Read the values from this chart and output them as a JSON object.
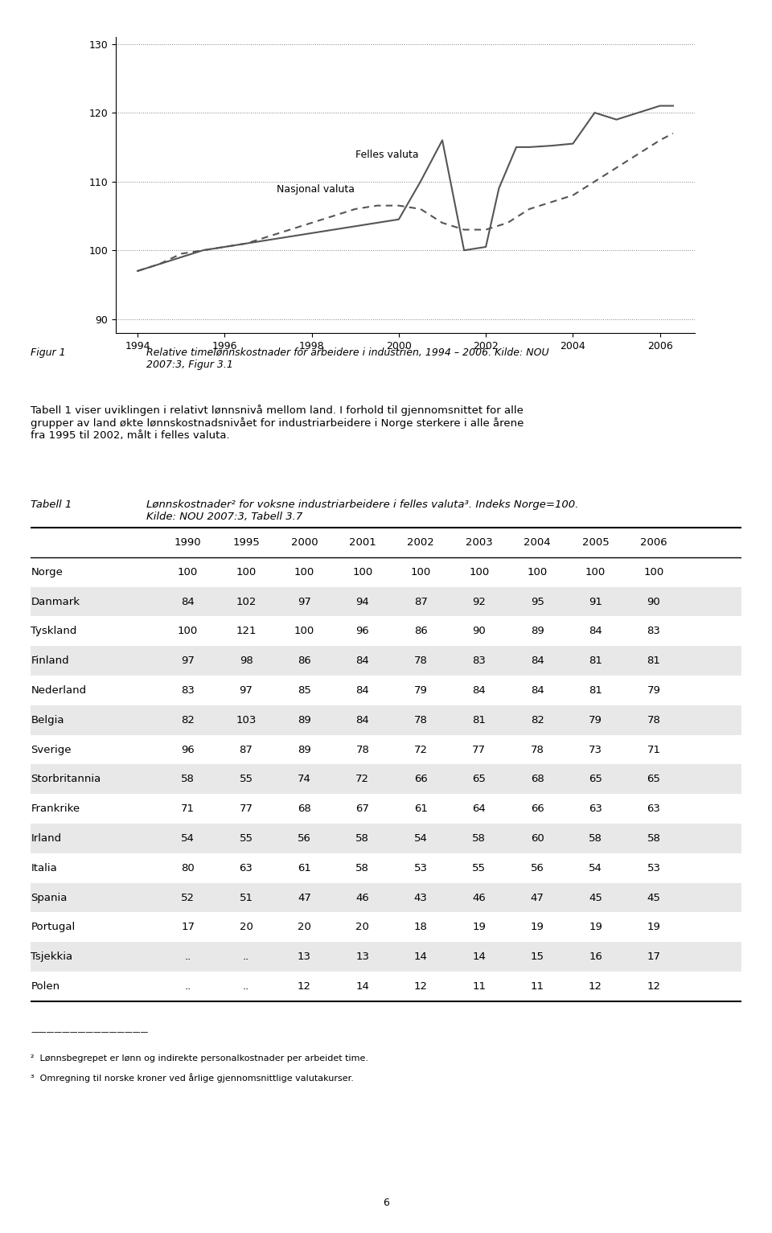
{
  "fig_caption": "Figur 1  Relative timelønnskostnader for arbeidere i industrien, 1994 – 2006. Kilde: NOU 2007:3, Figur 3.1",
  "body_text": "Tabell 1 viser uviklingen i relativt lønnsnivå mellom land. I forhold til gjennomsnittet for alle grupper av land økte lønnskostnadsnivået for industriarbeidere i Norge sterkere i alle årene fra 1995 til 2002, målt i felles valuta.",
  "table_caption_label": "Tabell 1",
  "table_caption_text": "Lønnskostnader² for voksne industriarbeidere i felles valuta³. Indeks Norge=100. Kilde: NOU 2007:3, Tabell 3.7",
  "columns": [
    "",
    "1990",
    "1995",
    "2000",
    "2001",
    "2002",
    "2003",
    "2004",
    "2005",
    "2006"
  ],
  "rows": [
    [
      "Norge",
      "100",
      "100",
      "100",
      "100",
      "100",
      "100",
      "100",
      "100",
      "100"
    ],
    [
      "Danmark",
      "84",
      "102",
      "97",
      "94",
      "87",
      "92",
      "95",
      "91",
      "90"
    ],
    [
      "Tyskland",
      "100",
      "121",
      "100",
      "96",
      "86",
      "90",
      "89",
      "84",
      "83"
    ],
    [
      "Finland",
      "97",
      "98",
      "86",
      "84",
      "78",
      "83",
      "84",
      "81",
      "81"
    ],
    [
      "Nederland",
      "83",
      "97",
      "85",
      "84",
      "79",
      "84",
      "84",
      "81",
      "79"
    ],
    [
      "Belgia",
      "82",
      "103",
      "89",
      "84",
      "78",
      "81",
      "82",
      "79",
      "78"
    ],
    [
      "Sverige",
      "96",
      "87",
      "89",
      "78",
      "72",
      "77",
      "78",
      "73",
      "71"
    ],
    [
      "Storbritannia",
      "58",
      "55",
      "74",
      "72",
      "66",
      "65",
      "68",
      "65",
      "65"
    ],
    [
      "Frankrike",
      "71",
      "77",
      "68",
      "67",
      "61",
      "64",
      "66",
      "63",
      "63"
    ],
    [
      "Irland",
      "54",
      "55",
      "56",
      "58",
      "54",
      "58",
      "60",
      "58",
      "58"
    ],
    [
      "Italia",
      "80",
      "63",
      "61",
      "58",
      "53",
      "55",
      "56",
      "54",
      "53"
    ],
    [
      "Spania",
      "52",
      "51",
      "47",
      "46",
      "43",
      "46",
      "47",
      "45",
      "45"
    ],
    [
      "Portugal",
      "17",
      "20",
      "20",
      "20",
      "18",
      "19",
      "19",
      "19",
      "19"
    ],
    [
      "Tsjekkia",
      "..",
      "..",
      "13",
      "13",
      "14",
      "14",
      "15",
      "16",
      "17"
    ],
    [
      "Polen",
      "..",
      "..",
      "12",
      "14",
      "12",
      "11",
      "11",
      "12",
      "12"
    ]
  ],
  "footnote2": "²  Lønnsbegrepet er lønn og indirekte personalkostnader per arbeidet time.",
  "footnote3": "³  Omregning til norske kroner ved årlige gjennomsnittlige valutakurser.",
  "page_number": "6",
  "chart": {
    "x_felles": [
      1994,
      1994.5,
      1995,
      1995.5,
      1996,
      1996.5,
      1997,
      1997.5,
      1998,
      1998.5,
      1999,
      1999.5,
      2000,
      2000.5,
      2001,
      2001.5,
      2002,
      2002.3,
      2002.7,
      2003,
      2003.5,
      2004,
      2004.5,
      2005,
      2005.5,
      2006,
      2006.3
    ],
    "y_felles": [
      97,
      98,
      99,
      100,
      100.5,
      101,
      101.5,
      102,
      102.5,
      103,
      103.5,
      104,
      104.5,
      110,
      116,
      100,
      100.5,
      109,
      115,
      115,
      115.2,
      115.5,
      120,
      119,
      120,
      121,
      121
    ],
    "x_nasjonal": [
      1994,
      1994.5,
      1995,
      1995.5,
      1996,
      1996.5,
      1997,
      1997.5,
      1998,
      1998.5,
      1999,
      1999.5,
      2000,
      2000.5,
      2001,
      2001.5,
      2002,
      2002.5,
      2003,
      2003.5,
      2004,
      2004.5,
      2005,
      2005.5,
      2006,
      2006.3
    ],
    "y_nasjonal": [
      97,
      98,
      99.5,
      100,
      100.5,
      101,
      102,
      103,
      104,
      105,
      106,
      106.5,
      106.5,
      106,
      104,
      103,
      103,
      104,
      106,
      107,
      108,
      110,
      112,
      114,
      116,
      117
    ],
    "xlim": [
      1993.5,
      2006.8
    ],
    "ylim": [
      88,
      131
    ],
    "yticks": [
      90,
      100,
      110,
      120,
      130
    ],
    "xticks": [
      1994,
      1996,
      1998,
      2000,
      2002,
      2004,
      2006
    ]
  },
  "bg_color_even": "#e8e8e8",
  "bg_color_odd": "#ffffff"
}
